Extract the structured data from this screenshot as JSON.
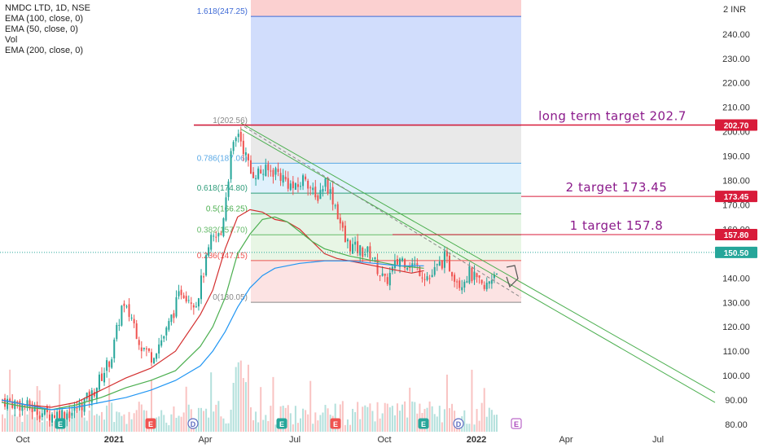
{
  "legend": {
    "symbol": "NMDC LTD, 1D, NSE",
    "ema100": "EMA (100, close, 0)",
    "ema50": "EMA (50, close, 0)",
    "vol": "Vol",
    "ema200": "EMA (200, close, 0)"
  },
  "currency": "INR",
  "currency_prefix": "2",
  "colors": {
    "ema_red": "#d32f2f",
    "ema_green": "#4caf50",
    "ema_blue": "#2196f3",
    "candle_up": "#26a69a",
    "candle_down": "#ef5350",
    "target_line": "#d81b3a",
    "target_text": "#8b1a8b",
    "last_price": "#26a69a"
  },
  "annotations": {
    "long_term": "long term target 202.7",
    "target2": "2 target 173.45",
    "target1": "1 target 157.8"
  },
  "chart_data": {
    "type": "candlestick",
    "title": "NMDC LTD, 1D, NSE",
    "ylim": [
      77,
      255
    ],
    "y_ticks": [
      80,
      90,
      100,
      110,
      120,
      130,
      140,
      150,
      160,
      170,
      180,
      190,
      200,
      210,
      220,
      230,
      240
    ],
    "x_ticks": [
      "Oct",
      "2021",
      "Apr",
      "Jul",
      "Oct",
      "2022",
      "Apr",
      "Jul"
    ],
    "price_tags": [
      {
        "label": "202.70",
        "value": 202.7,
        "color": "#d81b3a"
      },
      {
        "label": "173.45",
        "value": 173.45,
        "color": "#d81b3a"
      },
      {
        "label": "157.80",
        "value": 157.8,
        "color": "#d81b3a"
      },
      {
        "label": "150.50",
        "value": 150.5,
        "color": "#26a69a"
      }
    ],
    "fib_levels": [
      {
        "label": "1.618(247.25)",
        "value": 247.25
      },
      {
        "label": "1(202.56)",
        "value": 202.56
      },
      {
        "label": "0.786(187.06)",
        "value": 187.06
      },
      {
        "label": "0.618(174.80)",
        "value": 174.8
      },
      {
        "label": "0.5(166.25)",
        "value": 166.25
      },
      {
        "label": "0.382(157.70)",
        "value": 157.7
      },
      {
        "label": "0.236(147.15)",
        "value": 147.15
      },
      {
        "label": "0(130.05)",
        "value": 130.05
      }
    ],
    "event_markers": [
      "E",
      "E",
      "D",
      "E",
      "E",
      "E",
      "D",
      "E"
    ],
    "series": [
      {
        "name": "EMA (100, close, 0)",
        "color": "#d32f2f",
        "points": [
          [
            0,
            90
          ],
          [
            10,
            88
          ],
          [
            20,
            87
          ],
          [
            30,
            89
          ],
          [
            40,
            94
          ],
          [
            50,
            99
          ],
          [
            60,
            103
          ],
          [
            70,
            110
          ],
          [
            80,
            125
          ],
          [
            85,
            135
          ],
          [
            90,
            152
          ],
          [
            95,
            165
          ],
          [
            100,
            168
          ],
          [
            105,
            167
          ],
          [
            110,
            164
          ],
          [
            115,
            163
          ],
          [
            120,
            160
          ],
          [
            125,
            155
          ],
          [
            130,
            150
          ],
          [
            135,
            148
          ],
          [
            140,
            147
          ],
          [
            145,
            146
          ],
          [
            150,
            145
          ],
          [
            155,
            144
          ],
          [
            160,
            143
          ],
          [
            165,
            142
          ],
          [
            170,
            143
          ]
        ]
      },
      {
        "name": "EMA (50, close, 0)",
        "color": "#4caf50",
        "points": [
          [
            0,
            89
          ],
          [
            10,
            87
          ],
          [
            20,
            86
          ],
          [
            30,
            88
          ],
          [
            40,
            91
          ],
          [
            50,
            95
          ],
          [
            60,
            98
          ],
          [
            70,
            102
          ],
          [
            80,
            112
          ],
          [
            85,
            120
          ],
          [
            90,
            132
          ],
          [
            95,
            150
          ],
          [
            100,
            158
          ],
          [
            105,
            164
          ],
          [
            110,
            165
          ],
          [
            115,
            163
          ],
          [
            120,
            159
          ],
          [
            125,
            155
          ],
          [
            130,
            152
          ],
          [
            140,
            149
          ],
          [
            150,
            147
          ],
          [
            160,
            145
          ],
          [
            170,
            144
          ]
        ]
      },
      {
        "name": "EMA (200, close, 0)",
        "color": "#2196f3",
        "points": [
          [
            0,
            90
          ],
          [
            10,
            88
          ],
          [
            20,
            86
          ],
          [
            30,
            87
          ],
          [
            40,
            89
          ],
          [
            50,
            91
          ],
          [
            60,
            94
          ],
          [
            70,
            98
          ],
          [
            80,
            104
          ],
          [
            85,
            110
          ],
          [
            90,
            118
          ],
          [
            95,
            128
          ],
          [
            100,
            136
          ],
          [
            105,
            141
          ],
          [
            110,
            144
          ],
          [
            120,
            146
          ],
          [
            130,
            147
          ],
          [
            140,
            147
          ],
          [
            150,
            146
          ],
          [
            160,
            145
          ],
          [
            170,
            145
          ]
        ]
      }
    ]
  }
}
